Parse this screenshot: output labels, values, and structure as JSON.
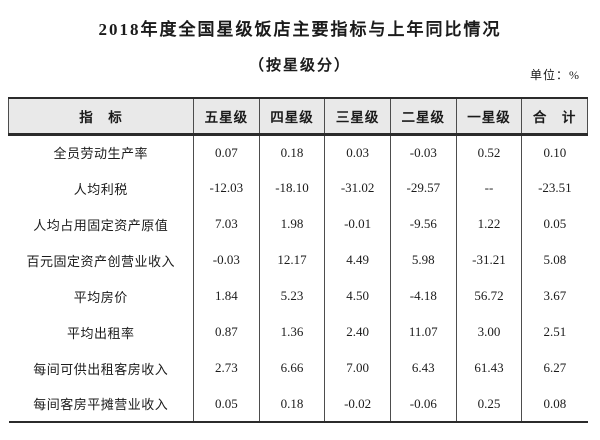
{
  "page": {
    "title": "2018年度全国星级饭店主要指标与上年同比情况",
    "subtitle": "（按星级分）",
    "unit_label": "单位：%"
  },
  "table": {
    "columns": [
      "指　标",
      "五星级",
      "四星级",
      "三星级",
      "二星级",
      "一星级",
      "合　计"
    ],
    "rows": [
      {
        "label": "全员劳动生产率",
        "values": [
          "0.07",
          "0.18",
          "0.03",
          "-0.03",
          "0.52",
          "0.10"
        ]
      },
      {
        "label": "人均利税",
        "values": [
          "-12.03",
          "-18.10",
          "-31.02",
          "-29.57",
          "--",
          "-23.51"
        ]
      },
      {
        "label": "人均占用固定资产原值",
        "values": [
          "7.03",
          "1.98",
          "-0.01",
          "-9.56",
          "1.22",
          "0.05"
        ]
      },
      {
        "label": "百元固定资产创营业收入",
        "values": [
          "-0.03",
          "12.17",
          "4.49",
          "5.98",
          "-31.21",
          "5.08"
        ]
      },
      {
        "label": "平均房价",
        "values": [
          "1.84",
          "5.23",
          "4.50",
          "-4.18",
          "56.72",
          "3.67"
        ]
      },
      {
        "label": "平均出租率",
        "values": [
          "0.87",
          "1.36",
          "2.40",
          "11.07",
          "3.00",
          "2.51"
        ]
      },
      {
        "label": "每间可供出租客房收入",
        "values": [
          "2.73",
          "6.66",
          "7.00",
          "6.43",
          "61.43",
          "6.27"
        ]
      },
      {
        "label": "每间客房平摊营业收入",
        "values": [
          "0.05",
          "0.18",
          "-0.02",
          "-0.06",
          "0.25",
          "0.08"
        ]
      }
    ]
  },
  "colors": {
    "text": "#1b1b1b",
    "heavy_rule": "#2b2b2b",
    "light_rule": "#4d4d4d",
    "header_background": "#e9e9e9",
    "page_background": "#ffffff"
  }
}
